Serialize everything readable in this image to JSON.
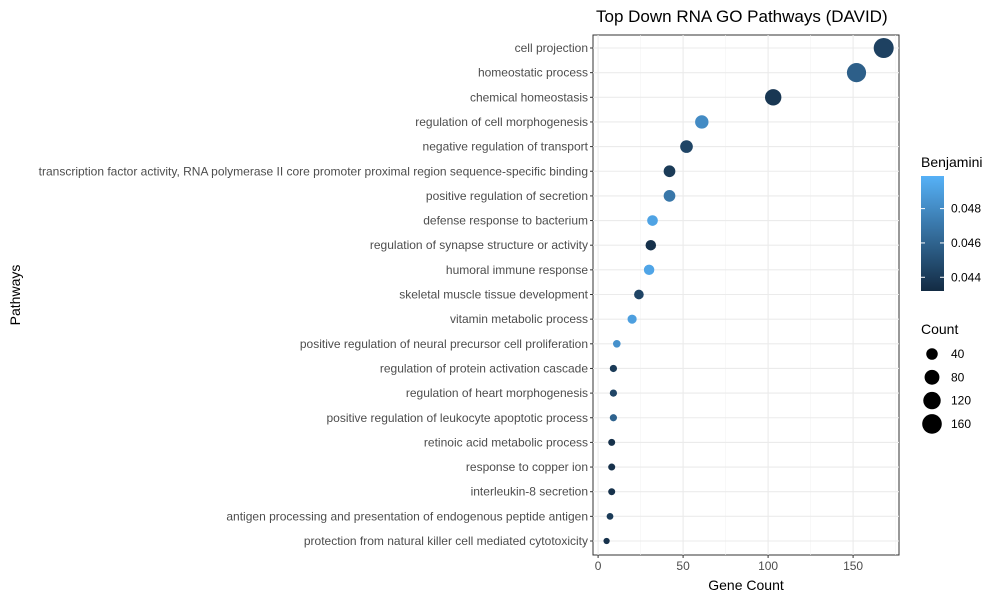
{
  "chart_data": {
    "type": "scatter",
    "title": "Top Down RNA GO Pathways (DAVID)",
    "xlabel": "Gene Count",
    "ylabel": "Pathways",
    "xlim": [
      -3,
      177
    ],
    "xticks": [
      0,
      50,
      100,
      150
    ],
    "grid": true,
    "legend_placement": "right",
    "categories": [
      "cell projection",
      "homeostatic process",
      "chemical homeostasis",
      "regulation of cell morphogenesis",
      "negative regulation of transport",
      "transcription factor activity, RNA polymerase II core promoter proximal region sequence-specific binding",
      "positive regulation of secretion",
      "defense response to bacterium",
      "regulation of synapse structure or activity",
      "humoral immune response",
      "skeletal muscle tissue development",
      "vitamin metabolic process",
      "positive regulation of neural precursor cell proliferation",
      "regulation of protein activation cascade",
      "regulation of heart morphogenesis",
      "positive regulation of leukocyte apoptotic process",
      "retinoic acid metabolic process",
      "response to copper ion",
      "interleukin-8 secretion",
      "antigen processing and presentation of endogenous peptide antigen",
      "protection from natural killer cell mediated cytotoxicity"
    ],
    "gene_count": [
      168,
      152,
      103,
      61,
      52,
      42,
      42,
      32,
      31,
      30,
      24,
      20,
      11,
      9,
      9,
      9,
      8,
      8,
      8,
      7,
      5
    ],
    "benjamini": [
      0.0443,
      0.0458,
      0.0438,
      0.048,
      0.0445,
      0.044,
      0.047,
      0.0492,
      0.0435,
      0.0493,
      0.0445,
      0.049,
      0.0483,
      0.044,
      0.0445,
      0.046,
      0.0435,
      0.0435,
      0.0435,
      0.044,
      0.0435
    ],
    "color_legend": {
      "title": "Benjamini",
      "ticks": [
        "0.044",
        "0.046",
        "0.048"
      ],
      "tick_values": [
        0.044,
        0.046,
        0.048
      ],
      "range": [
        0.0432,
        0.0499
      ],
      "low_color": "#132b43",
      "high_color": "#56b1f7"
    },
    "size_legend": {
      "title": "Count",
      "values": [
        40,
        80,
        120,
        160
      ],
      "labels": [
        "40",
        "80",
        "120",
        "160"
      ],
      "point_color": "#000000"
    }
  }
}
